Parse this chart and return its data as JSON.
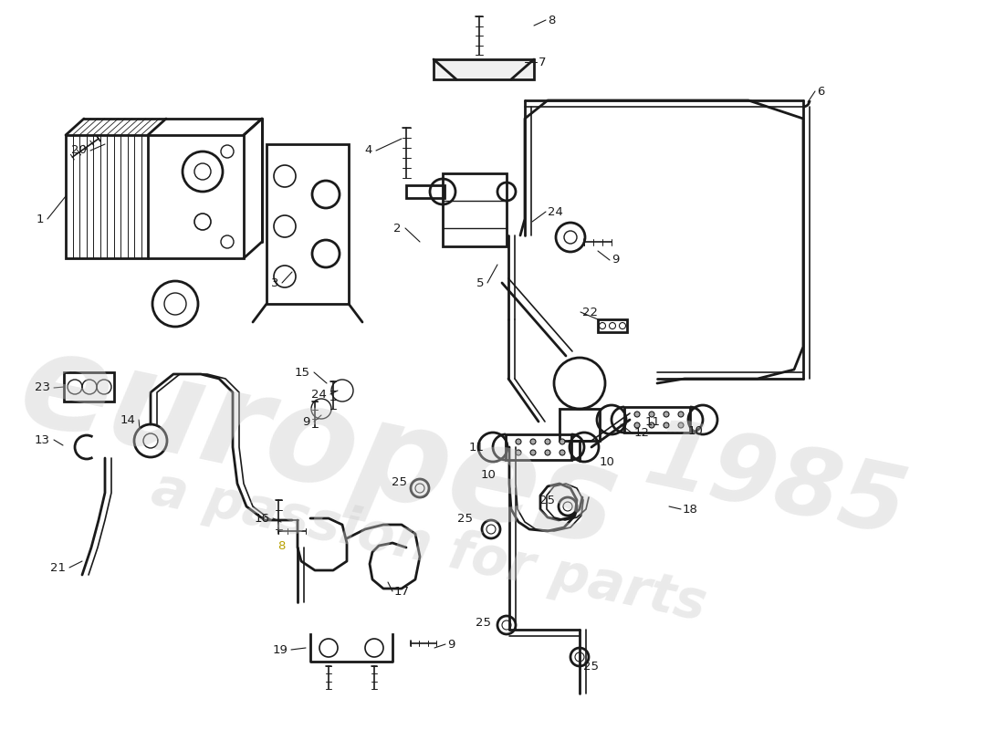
{
  "bg_color": "#ffffff",
  "line_color": "#1a1a1a",
  "watermark_color": "#cccccc",
  "label_color_yellow": "#b8a000",
  "figsize": [
    11.0,
    8.0
  ],
  "dpi": 100
}
